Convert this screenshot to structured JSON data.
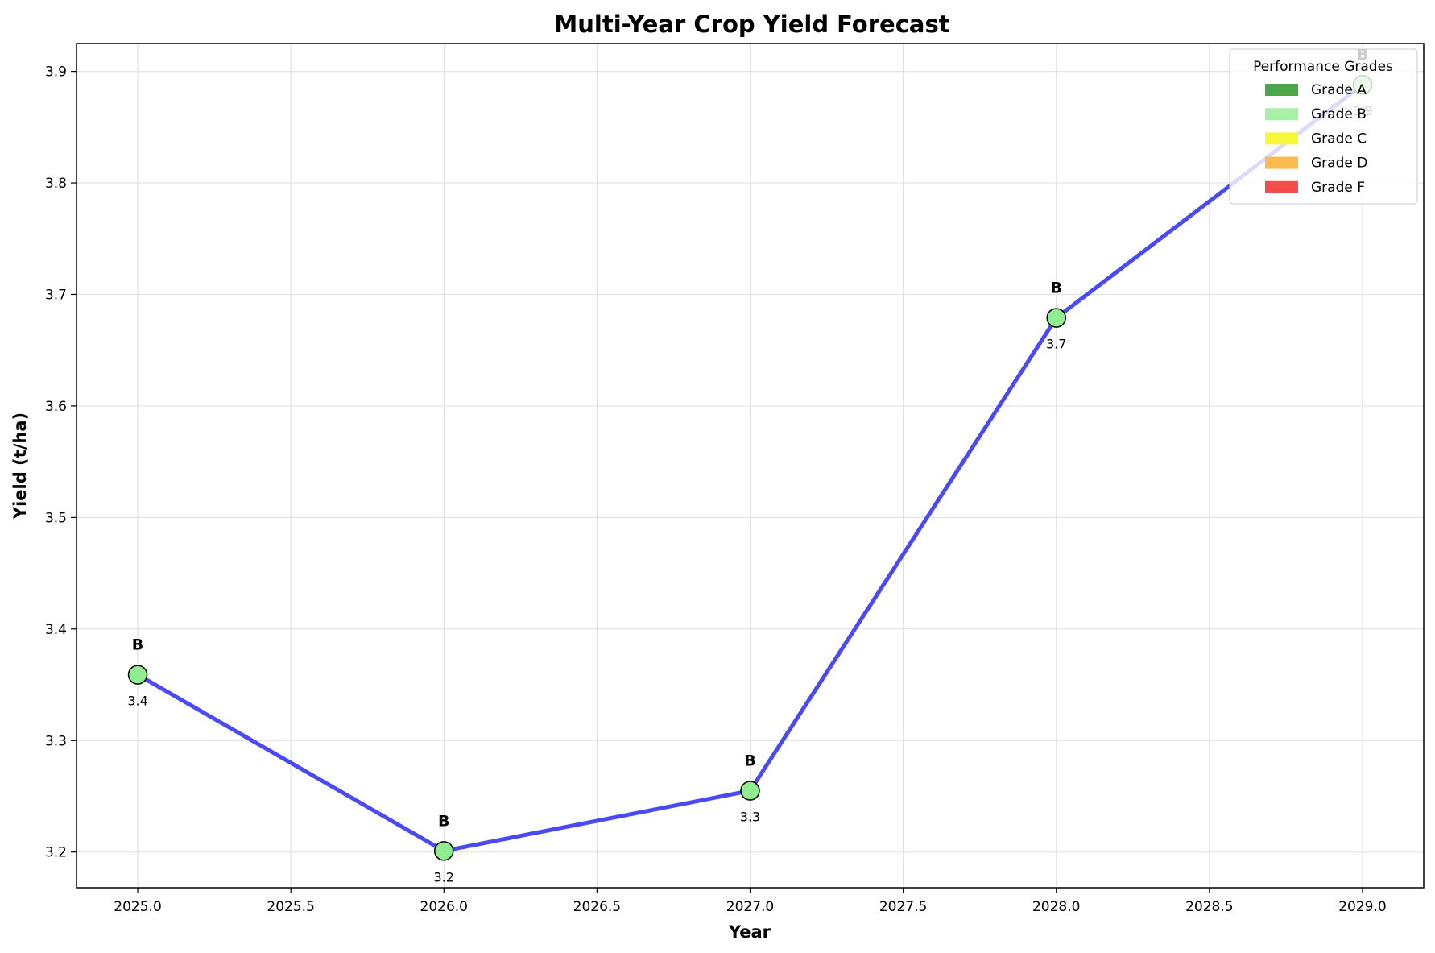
{
  "chart_data": {
    "type": "line",
    "title": "Multi-Year Crop Yield Forecast",
    "xlabel": "Year",
    "ylabel": "Yield (t/ha)",
    "xlim": [
      2024.8,
      2029.2
    ],
    "ylim": [
      3.168,
      3.925
    ],
    "x_ticks": [
      "2025.0",
      "2025.5",
      "2026.0",
      "2026.5",
      "2027.0",
      "2027.5",
      "2028.0",
      "2028.5",
      "2029.0"
    ],
    "y_ticks": [
      "3.2",
      "3.3",
      "3.4",
      "3.5",
      "3.6",
      "3.7",
      "3.8",
      "3.9"
    ],
    "grid": true,
    "line_color": "#4a4af5",
    "points": [
      {
        "x": 2025,
        "y": 3.359,
        "grade": "B",
        "value_label": "3.4",
        "color": "#90ee90"
      },
      {
        "x": 2026,
        "y": 3.201,
        "grade": "B",
        "value_label": "3.2",
        "color": "#90ee90"
      },
      {
        "x": 2027,
        "y": 3.255,
        "grade": "B",
        "value_label": "3.3",
        "color": "#90ee90"
      },
      {
        "x": 2028,
        "y": 3.679,
        "grade": "B",
        "value_label": "3.7",
        "color": "#90ee90"
      },
      {
        "x": 2029,
        "y": 3.888,
        "grade": "B",
        "value_label": "3.9",
        "color": "#90ee90"
      }
    ],
    "legend": {
      "title": "Performance Grades",
      "placement": "top-right",
      "entries": [
        {
          "label": "Grade A",
          "color": "#4ca64c"
        },
        {
          "label": "Grade B",
          "color": "#a8f0a8"
        },
        {
          "label": "Grade C",
          "color": "#f7f739"
        },
        {
          "label": "Grade D",
          "color": "#f9bc4c"
        },
        {
          "label": "Grade F",
          "color": "#f54c4c"
        }
      ]
    }
  }
}
